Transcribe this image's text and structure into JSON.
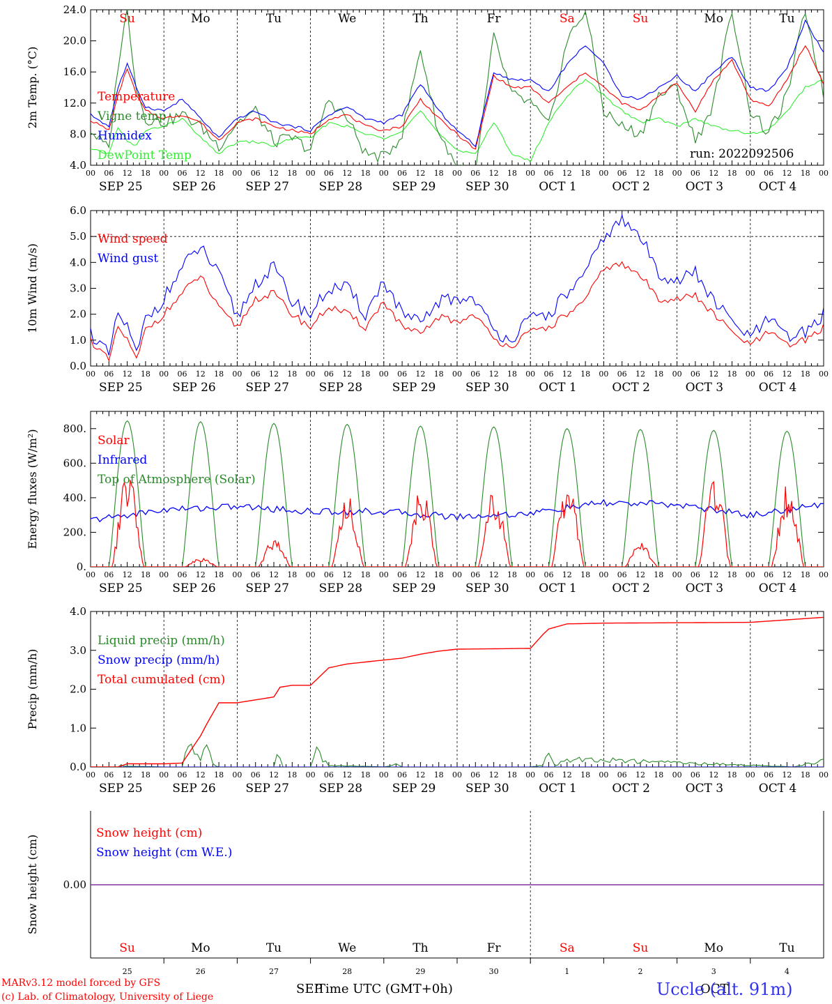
{
  "run_label": "run: 2022092506",
  "time_axis": {
    "hour_labels": [
      "00",
      "06",
      "12",
      "18"
    ],
    "end_hour_label": "00",
    "dates": [
      "SEP 25",
      "SEP 26",
      "SEP 27",
      "SEP 28",
      "SEP 29",
      "SEP 30",
      "OCT  1",
      "OCT  2",
      "OCT  3",
      "OCT  4"
    ],
    "days_of_week": [
      "Su",
      "Mo",
      "Tu",
      "We",
      "Th",
      "Fr",
      "Sa",
      "Su",
      "Mo",
      "Tu"
    ],
    "weekend_color": "#ff0000",
    "weekday_color": "#000000",
    "bottom_day_numbers": [
      "25",
      "26",
      "27",
      "28",
      "29",
      "30",
      "1",
      "2",
      "3",
      "4"
    ],
    "bottom_month_overlap": "SEP",
    "bottom_month_overlap2": "OCT",
    "xlabel": "Time UTC (GMT+0h)"
  },
  "footer": {
    "model_line": "MARv3.12 model forced by GFS",
    "credit_line": "(c) Lab. of Climatology, University of Liege",
    "location": "Uccle (alt. 91m)"
  },
  "chart_data": [
    {
      "type": "line",
      "ylabel": "2m Temp. (°C)",
      "ylim": [
        4.0,
        24.0
      ],
      "yticks": [
        "4.0",
        "8.0",
        "12.0",
        "16.0",
        "20.0",
        "24.0"
      ],
      "x_unit": "hours since 2022-09-25 00 UTC",
      "series": [
        {
          "name": "Temperature",
          "color": "#ff0000",
          "x": [
            0,
            6,
            9,
            12,
            15,
            18,
            24,
            30,
            36,
            42,
            48,
            54,
            60,
            66,
            72,
            78,
            84,
            90,
            96,
            102,
            108,
            114,
            120,
            126,
            132,
            138,
            144,
            150,
            156,
            162,
            168,
            174,
            180,
            186,
            192,
            198,
            204,
            210,
            216,
            222,
            228,
            234,
            240
          ],
          "values": [
            9.8,
            8.5,
            13.0,
            16.5,
            13.0,
            11.0,
            10.0,
            10.5,
            9.5,
            7.2,
            9.5,
            10.0,
            9.0,
            8.5,
            8.0,
            10.0,
            10.5,
            9.0,
            8.5,
            9.0,
            12.5,
            10.0,
            8.0,
            6.0,
            15.5,
            14.0,
            14.0,
            12.0,
            14.0,
            16.0,
            14.0,
            12.0,
            11.0,
            13.0,
            14.5,
            11.0,
            15.0,
            17.5,
            12.5,
            11.5,
            15.0,
            19.5,
            14.5
          ]
        },
        {
          "name": "Vigne temp",
          "color": "#2a8a2a",
          "x": [
            0,
            6,
            9,
            12,
            15,
            18,
            24,
            30,
            36,
            42,
            48,
            54,
            60,
            66,
            72,
            78,
            84,
            90,
            96,
            102,
            108,
            114,
            120,
            126,
            132,
            138,
            144,
            150,
            156,
            162,
            168,
            174,
            180,
            186,
            192,
            198,
            204,
            210,
            216,
            222,
            228,
            234,
            240
          ],
          "values": [
            8.5,
            6.0,
            17.0,
            24.0,
            14.0,
            10.0,
            9.5,
            10.5,
            9.0,
            6.5,
            9.5,
            11.0,
            7.0,
            7.5,
            6.0,
            12.5,
            10.0,
            5.5,
            5.0,
            8.0,
            19.0,
            8.0,
            4.0,
            3.0,
            20.5,
            13.0,
            12.0,
            9.0,
            20.0,
            24.0,
            11.0,
            9.0,
            8.0,
            13.0,
            14.0,
            7.0,
            12.0,
            24.0,
            11.0,
            8.0,
            13.0,
            24.0,
            13.0
          ]
        },
        {
          "name": "Humidex",
          "color": "#0000ff",
          "x": [
            0,
            6,
            9,
            12,
            15,
            18,
            24,
            30,
            36,
            42,
            48,
            54,
            60,
            66,
            72,
            78,
            84,
            90,
            96,
            102,
            108,
            114,
            120,
            126,
            132,
            138,
            144,
            150,
            156,
            162,
            168,
            174,
            180,
            186,
            192,
            198,
            204,
            210,
            216,
            222,
            228,
            234,
            240
          ],
          "values": [
            10.5,
            9.0,
            14.0,
            17.0,
            14.0,
            11.5,
            11.0,
            12.5,
            10.0,
            7.5,
            10.0,
            11.0,
            9.5,
            9.0,
            8.5,
            10.5,
            11.5,
            10.0,
            9.5,
            10.5,
            14.5,
            11.0,
            8.5,
            6.5,
            16.0,
            15.0,
            15.0,
            13.5,
            17.0,
            19.5,
            17.0,
            13.0,
            12.5,
            14.0,
            15.5,
            13.5,
            16.0,
            18.0,
            14.0,
            13.5,
            16.5,
            22.5,
            18.5
          ]
        },
        {
          "name": "DewPoint Temp",
          "color": "#33ee33",
          "x": [
            0,
            6,
            9,
            12,
            15,
            18,
            24,
            30,
            36,
            42,
            48,
            54,
            60,
            66,
            72,
            78,
            84,
            90,
            96,
            102,
            108,
            114,
            120,
            126,
            132,
            138,
            144,
            150,
            156,
            162,
            168,
            174,
            180,
            186,
            192,
            198,
            204,
            210,
            216,
            222,
            228,
            234,
            240
          ],
          "values": [
            6.0,
            5.5,
            9.0,
            7.0,
            6.5,
            8.5,
            9.0,
            10.0,
            7.5,
            5.5,
            7.0,
            7.0,
            6.5,
            7.5,
            7.5,
            9.5,
            9.0,
            8.0,
            7.5,
            8.5,
            11.0,
            8.0,
            6.0,
            5.5,
            9.5,
            5.5,
            4.5,
            9.5,
            13.0,
            15.0,
            13.0,
            11.0,
            9.5,
            10.0,
            9.0,
            10.0,
            9.0,
            8.5,
            8.0,
            8.5,
            11.0,
            14.0,
            15.0
          ]
        }
      ]
    },
    {
      "type": "line",
      "ylabel": "10m Wind (m/s)",
      "ylim": [
        0.0,
        6.0
      ],
      "yticks": [
        "0.0",
        "1.0",
        "2.0",
        "3.0",
        "4.0",
        "5.0",
        "6.0"
      ],
      "reference_line": 5.0,
      "x_unit": "hours since 2022-09-25 00 UTC",
      "series": [
        {
          "name": "Wind speed",
          "color": "#ff0000",
          "x": [
            0,
            6,
            9,
            12,
            15,
            18,
            24,
            30,
            36,
            42,
            48,
            54,
            60,
            66,
            72,
            78,
            84,
            90,
            96,
            102,
            108,
            114,
            120,
            126,
            132,
            138,
            144,
            150,
            156,
            162,
            168,
            174,
            180,
            186,
            192,
            198,
            204,
            210,
            216,
            222,
            228,
            234,
            240
          ],
          "values": [
            1.0,
            0.2,
            1.5,
            1.0,
            0.2,
            1.4,
            2.0,
            2.8,
            3.5,
            2.2,
            1.5,
            2.6,
            2.8,
            2.0,
            1.5,
            2.3,
            2.0,
            1.5,
            2.5,
            1.5,
            1.2,
            1.9,
            1.7,
            2.0,
            1.0,
            0.8,
            1.3,
            1.5,
            2.0,
            2.5,
            3.8,
            3.9,
            3.5,
            2.6,
            2.6,
            2.7,
            2.0,
            1.3,
            0.8,
            1.3,
            0.8,
            1.0,
            1.5
          ]
        },
        {
          "name": "Wind gust",
          "color": "#0000ff",
          "x": [
            0,
            6,
            9,
            12,
            15,
            18,
            24,
            30,
            36,
            42,
            48,
            54,
            60,
            66,
            72,
            78,
            84,
            90,
            96,
            102,
            108,
            114,
            120,
            126,
            132,
            138,
            144,
            150,
            156,
            162,
            168,
            174,
            180,
            186,
            192,
            198,
            204,
            210,
            216,
            222,
            228,
            234,
            240
          ],
          "values": [
            1.3,
            0.4,
            2.0,
            1.5,
            0.4,
            1.8,
            2.6,
            3.8,
            4.6,
            3.5,
            1.9,
            3.2,
            3.8,
            2.5,
            2.0,
            3.0,
            3.0,
            2.0,
            3.3,
            2.0,
            1.6,
            2.5,
            2.6,
            2.6,
            1.3,
            1.1,
            1.8,
            2.0,
            2.8,
            3.5,
            5.0,
            5.6,
            5.0,
            3.6,
            3.3,
            3.6,
            2.5,
            1.7,
            1.1,
            1.8,
            1.1,
            1.3,
            2.0
          ]
        }
      ]
    },
    {
      "type": "line",
      "ylabel": "Energy fluxes (W/m²)",
      "ylim": [
        0,
        900
      ],
      "yticks": [
        "0.",
        "200.",
        "400.",
        "600.",
        "800."
      ],
      "x_unit": "hours since 2022-09-25 00 UTC",
      "series": [
        {
          "name": "Solar",
          "color": "#ff0000",
          "daily_peaks": [
            570,
            55,
            170,
            420,
            500,
            460,
            520,
            150,
            540,
            500
          ]
        },
        {
          "name": "Infrared",
          "color": "#0000ff",
          "x": [
            0,
            24,
            48,
            72,
            96,
            120,
            144,
            168,
            192,
            216,
            240
          ],
          "values": [
            270,
            330,
            350,
            320,
            320,
            290,
            310,
            370,
            360,
            300,
            360
          ]
        },
        {
          "name": "Top of Atmosphere (Solar)",
          "color": "#2a8a2a",
          "daily_peaks": [
            845,
            840,
            830,
            825,
            815,
            810,
            800,
            795,
            790,
            785
          ]
        }
      ]
    },
    {
      "type": "line",
      "ylabel": "Precip (mm/h)",
      "ylim": [
        0.0,
        4.0
      ],
      "yticks": [
        "0.0",
        "1.0",
        "2.0",
        "3.0",
        "4.0"
      ],
      "x_unit": "hours since 2022-09-25 00 UTC",
      "series": [
        {
          "name": "Liquid precip (mm/h)",
          "color": "#2a8a2a",
          "x": [
            0,
            9,
            10,
            12,
            24,
            30,
            32,
            36,
            38,
            40,
            42,
            60,
            61,
            63,
            72,
            74,
            76,
            78,
            96,
            100,
            102,
            144,
            148,
            150,
            152,
            156,
            230,
            240
          ],
          "values": [
            0,
            0,
            0.05,
            0.02,
            0,
            0,
            0.75,
            0.3,
            0.95,
            0.1,
            0,
            0,
            0.75,
            0,
            0,
            0.6,
            0.3,
            0.05,
            0,
            0.1,
            0,
            0,
            0.05,
            0.65,
            0.05,
            0.3,
            0,
            0.25
          ]
        },
        {
          "name": "Snow precip (mm/h)",
          "color": "#0000ff",
          "x": [
            0,
            240
          ],
          "values": [
            0,
            0
          ]
        },
        {
          "name": "Total cumulated (cm)",
          "color": "#ff0000",
          "x": [
            0,
            9,
            12,
            24,
            30,
            36,
            38,
            42,
            48,
            60,
            62,
            66,
            72,
            78,
            84,
            96,
            102,
            108,
            114,
            120,
            144,
            148,
            150,
            156,
            168,
            216,
            240
          ],
          "values": [
            0,
            0,
            0.08,
            0.08,
            0.1,
            0.8,
            1.1,
            1.65,
            1.65,
            1.8,
            2.05,
            2.1,
            2.1,
            2.55,
            2.65,
            2.75,
            2.8,
            2.9,
            2.98,
            3.03,
            3.05,
            3.4,
            3.55,
            3.68,
            3.7,
            3.72,
            3.85
          ]
        }
      ]
    },
    {
      "type": "line",
      "ylabel": "Snow height (cm)",
      "yticks": [
        "0.00"
      ],
      "x_unit": "hours since 2022-09-25 00 UTC",
      "series": [
        {
          "name": "Snow height (cm)",
          "color": "#ff0000",
          "x": [
            0,
            240
          ],
          "values": [
            0,
            0
          ]
        },
        {
          "name": "Snow height (cm W.E.)",
          "color": "#0000ff",
          "x": [
            0,
            240
          ],
          "values": [
            0,
            0
          ]
        }
      ]
    }
  ]
}
